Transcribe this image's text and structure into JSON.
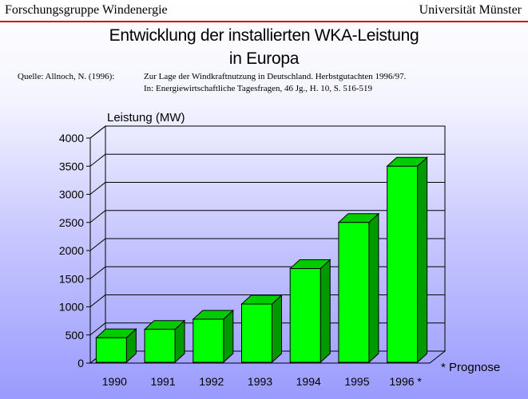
{
  "header": {
    "left": "Forschungsgruppe Windenergie",
    "right": "Universität Münster"
  },
  "title_line1": "Entwicklung der installierten WKA-Leistung",
  "title_line2": "in Europa",
  "source": {
    "label": "Quelle: Allnoch, N. (1996):",
    "line1": "Zur Lage der Windkraftnutzung in Deutschland. Herbstgutachten 1996/97.",
    "line2": "In: Energiewirtschaftliche Tagesfragen, 46 Jg., H. 10, S. 516-519"
  },
  "footnote": "* Prognose",
  "colors": {
    "bar_front": "#00ff00",
    "bar_side": "#009900",
    "bar_top": "#00cc00",
    "header_rule": "#d40000"
  },
  "chart_data": {
    "type": "bar",
    "title": "Entwicklung der installierten WKA-Leistung in Europa",
    "ylabel": "Leistung (MW)",
    "xlabel": "",
    "categories": [
      "1990",
      "1991",
      "1992",
      "1993",
      "1994",
      "1995",
      "1996 *"
    ],
    "values": [
      450,
      600,
      780,
      1050,
      1680,
      2500,
      3500
    ],
    "ylim": [
      0,
      4000
    ],
    "yticks": [
      0,
      500,
      1000,
      1500,
      2000,
      2500,
      3000,
      3500,
      4000
    ],
    "grid": true,
    "style": "3d-bar"
  }
}
